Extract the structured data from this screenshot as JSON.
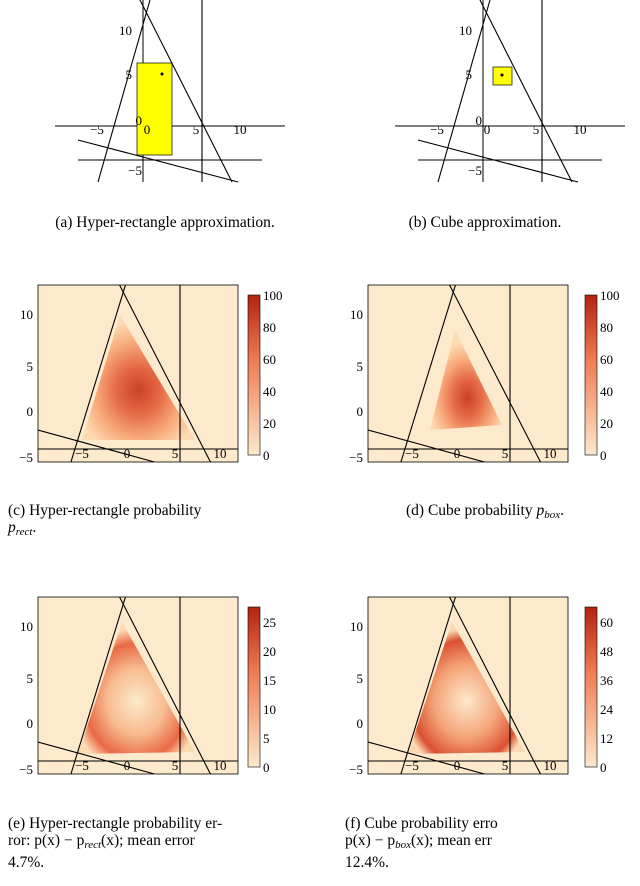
{
  "captions": {
    "a": "(a) Hyper-rectangle approximation.",
    "b": "(b) Cube approximation.",
    "c_prefix": "(c) Hyper-rectangle probability",
    "c_math": "p",
    "c_sub": "rect",
    "c_suffix": ".",
    "d_prefix": "(d) Cube probability",
    "d_math": "p",
    "d_sub": "box",
    "d_suffix": ".",
    "e_text": "(e) Hyper-rectangle probability error: p(x) − p_rect(x); mean error 4.7%.",
    "e_line1": "(e) Hyper-rectangle probability er-",
    "e_line2": "ror: p(x) − p",
    "e_line2_sub": "rect",
    "e_line2_rest": "(x); mean error",
    "e_line3": "4.7%.",
    "f_line1": "(f)   Cube   probability   erro",
    "f_line2": "p(x) − p",
    "f_line2_sub": "box",
    "f_line2_rest": "(x);   mean   err",
    "f_line3": "12.4%."
  },
  "axis_ticks": {
    "top_x": [
      "−5",
      "0",
      "5",
      "10"
    ],
    "top_y": [
      "10",
      "5",
      "0",
      "−5"
    ],
    "heat_x": [
      "−5",
      "0",
      "5",
      "10"
    ],
    "heat_y": [
      "10",
      "5",
      "0",
      "−5"
    ]
  },
  "colorbars": {
    "c": [
      "100",
      "80",
      "60",
      "40",
      "20",
      "0"
    ],
    "d": [
      "100",
      "80",
      "60",
      "40",
      "20",
      "0"
    ],
    "e": [
      "25",
      "20",
      "15",
      "10",
      "5",
      "0"
    ],
    "f": [
      "60",
      "48",
      "36",
      "24",
      "12",
      "0"
    ]
  },
  "colors": {
    "highlight": "#ffff00",
    "heat_bg": "#fde9cc",
    "heat_low": "#fcd9b0",
    "heat_mid": "#f08a5d",
    "heat_high": "#c8391c"
  }
}
